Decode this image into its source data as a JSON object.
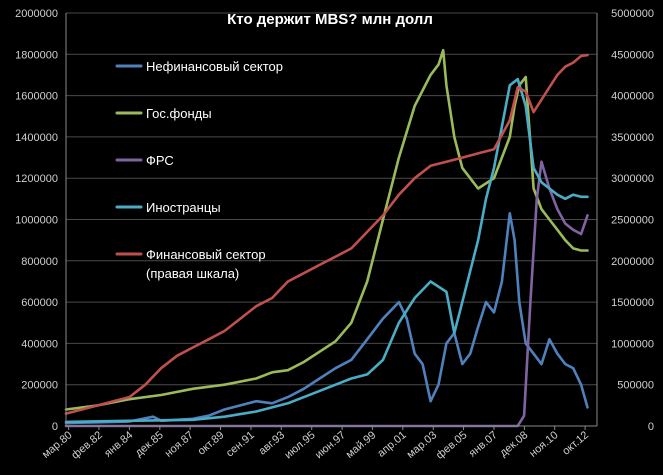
{
  "chart_data": {
    "type": "line",
    "title": "Кто держит MBS? млн долл",
    "xlabel": "",
    "ylabel": "",
    "ylim": [
      0,
      2000000
    ],
    "y2lim": [
      0,
      5000000
    ],
    "grid": true,
    "legend_position": "top-left",
    "y_ticks": [
      "0",
      "200000",
      "400000",
      "600000",
      "800000",
      "1000000",
      "1200000",
      "1400000",
      "1600000",
      "1800000",
      "2000000"
    ],
    "y2_ticks": [
      "0",
      "500000",
      "1000000",
      "1500000",
      "2000000",
      "2500000",
      "3000000",
      "3500000",
      "4000000",
      "4500000",
      "5000000"
    ],
    "x_tick_labels": [
      "мар.80",
      "фев.82",
      "янв.84",
      "дек.85",
      "ноя.87",
      "окт.89",
      "сен.91",
      "авг.93",
      "июл.95",
      "июн.97",
      "май.99",
      "апр.01",
      "мар.03",
      "фев.05",
      "янв.07",
      "дек.08",
      "ноя.10",
      "окт.12"
    ],
    "x_years": [
      1980.17,
      1982.08,
      1984.0,
      1985.92,
      1987.83,
      1989.75,
      1991.67,
      1993.58,
      1995.5,
      1997.42,
      1999.33,
      2001.25,
      2003.17,
      2005.08,
      2007.0,
      2008.92,
      2010.83,
      2012.75
    ],
    "x_range": [
      1980.0,
      2013.5
    ],
    "series": [
      {
        "name": "Нефинансовый сектор",
        "axis": "left",
        "color": "#4f81bd",
        "x": [
          1980,
          1982,
          1984,
          1985.5,
          1986,
          1987,
          1988,
          1989,
          1990,
          1991,
          1992,
          1993,
          1994,
          1995,
          1996,
          1997,
          1998,
          1999,
          2000,
          2001,
          2001.5,
          2002,
          2002.5,
          2003,
          2003.5,
          2004,
          2004.5,
          2005,
          2005.5,
          2006,
          2006.5,
          2007,
          2007.5,
          2008,
          2008.3,
          2008.6,
          2009,
          2009.5,
          2010,
          2010.5,
          2011,
          2011.5,
          2012,
          2012.5,
          2012.9
        ],
        "y": [
          15000,
          18000,
          22000,
          45000,
          25000,
          30000,
          35000,
          50000,
          80000,
          100000,
          120000,
          110000,
          140000,
          180000,
          230000,
          280000,
          320000,
          420000,
          520000,
          600000,
          520000,
          350000,
          300000,
          120000,
          200000,
          400000,
          450000,
          300000,
          350000,
          480000,
          600000,
          550000,
          700000,
          1030000,
          900000,
          600000,
          400000,
          350000,
          300000,
          420000,
          350000,
          300000,
          280000,
          200000,
          90000
        ]
      },
      {
        "name": "Гос.фонды",
        "axis": "left",
        "color": "#9bbb59",
        "x": [
          1980,
          1982,
          1984,
          1986,
          1988,
          1990,
          1992,
          1993,
          1994,
          1995,
          1996,
          1997,
          1998,
          1999,
          2000,
          2001,
          2002,
          2003,
          2003.5,
          2003.8,
          2004,
          2004.5,
          2005,
          2005.5,
          2006,
          2007,
          2008,
          2008.3,
          2008.6,
          2009,
          2009.5,
          2010,
          2010.5,
          2011,
          2011.5,
          2012,
          2012.5,
          2012.9
        ],
        "y": [
          80000,
          100000,
          130000,
          150000,
          180000,
          200000,
          230000,
          260000,
          270000,
          310000,
          360000,
          410000,
          500000,
          700000,
          1000000,
          1300000,
          1550000,
          1700000,
          1750000,
          1820000,
          1650000,
          1400000,
          1250000,
          1200000,
          1150000,
          1200000,
          1400000,
          1550000,
          1650000,
          1690000,
          1150000,
          1050000,
          1000000,
          950000,
          900000,
          860000,
          850000,
          850000
        ]
      },
      {
        "name": "ФРС",
        "axis": "left",
        "color": "#8064a2",
        "x": [
          1980,
          2008.5,
          2008.9,
          2009.3,
          2009.7,
          2010,
          2010.5,
          2011,
          2011.5,
          2012,
          2012.5,
          2012.9
        ],
        "y": [
          0,
          0,
          50000,
          600000,
          1100000,
          1280000,
          1150000,
          1050000,
          980000,
          950000,
          930000,
          1020000
        ]
      },
      {
        "name": "Иностранцы",
        "axis": "left",
        "color": "#4bacc6",
        "x": [
          1980,
          1984,
          1988,
          1990,
          1992,
          1994,
          1996,
          1998,
          1999,
          2000,
          2001,
          2002,
          2003,
          2004,
          2004.5,
          2005,
          2005.5,
          2006,
          2006.5,
          2007,
          2007.5,
          2008,
          2008.5,
          2009,
          2009.5,
          2010,
          2010.5,
          2011,
          2011.5,
          2012,
          2012.5,
          2012.9
        ],
        "y": [
          20000,
          25000,
          30000,
          45000,
          70000,
          110000,
          170000,
          230000,
          250000,
          320000,
          500000,
          620000,
          700000,
          650000,
          450000,
          600000,
          750000,
          900000,
          1100000,
          1250000,
          1450000,
          1650000,
          1680000,
          1550000,
          1250000,
          1180000,
          1150000,
          1120000,
          1100000,
          1120000,
          1110000,
          1110000
        ]
      },
      {
        "name": "Финансовый сектор",
        "name_line2": "(правая шкала)",
        "axis": "right",
        "color": "#c0504d",
        "x": [
          1980,
          1982,
          1984,
          1985,
          1986,
          1987,
          1988,
          1989,
          1990,
          1991,
          1992,
          1993,
          1994,
          1995,
          1996,
          1997,
          1998,
          1999,
          2000,
          2001,
          2002,
          2003,
          2004,
          2005,
          2006,
          2007,
          2008,
          2008.5,
          2009,
          2009.5,
          2010,
          2010.5,
          2011,
          2011.5,
          2012,
          2012.5,
          2012.9
        ],
        "y": [
          150000,
          250000,
          350000,
          500000,
          700000,
          850000,
          950000,
          1050000,
          1150000,
          1300000,
          1450000,
          1550000,
          1750000,
          1850000,
          1950000,
          2050000,
          2150000,
          2350000,
          2550000,
          2800000,
          3000000,
          3150000,
          3200000,
          3250000,
          3300000,
          3350000,
          3700000,
          4100000,
          4050000,
          3800000,
          3950000,
          4100000,
          4250000,
          4350000,
          4400000,
          4480000,
          4490000
        ]
      }
    ]
  }
}
